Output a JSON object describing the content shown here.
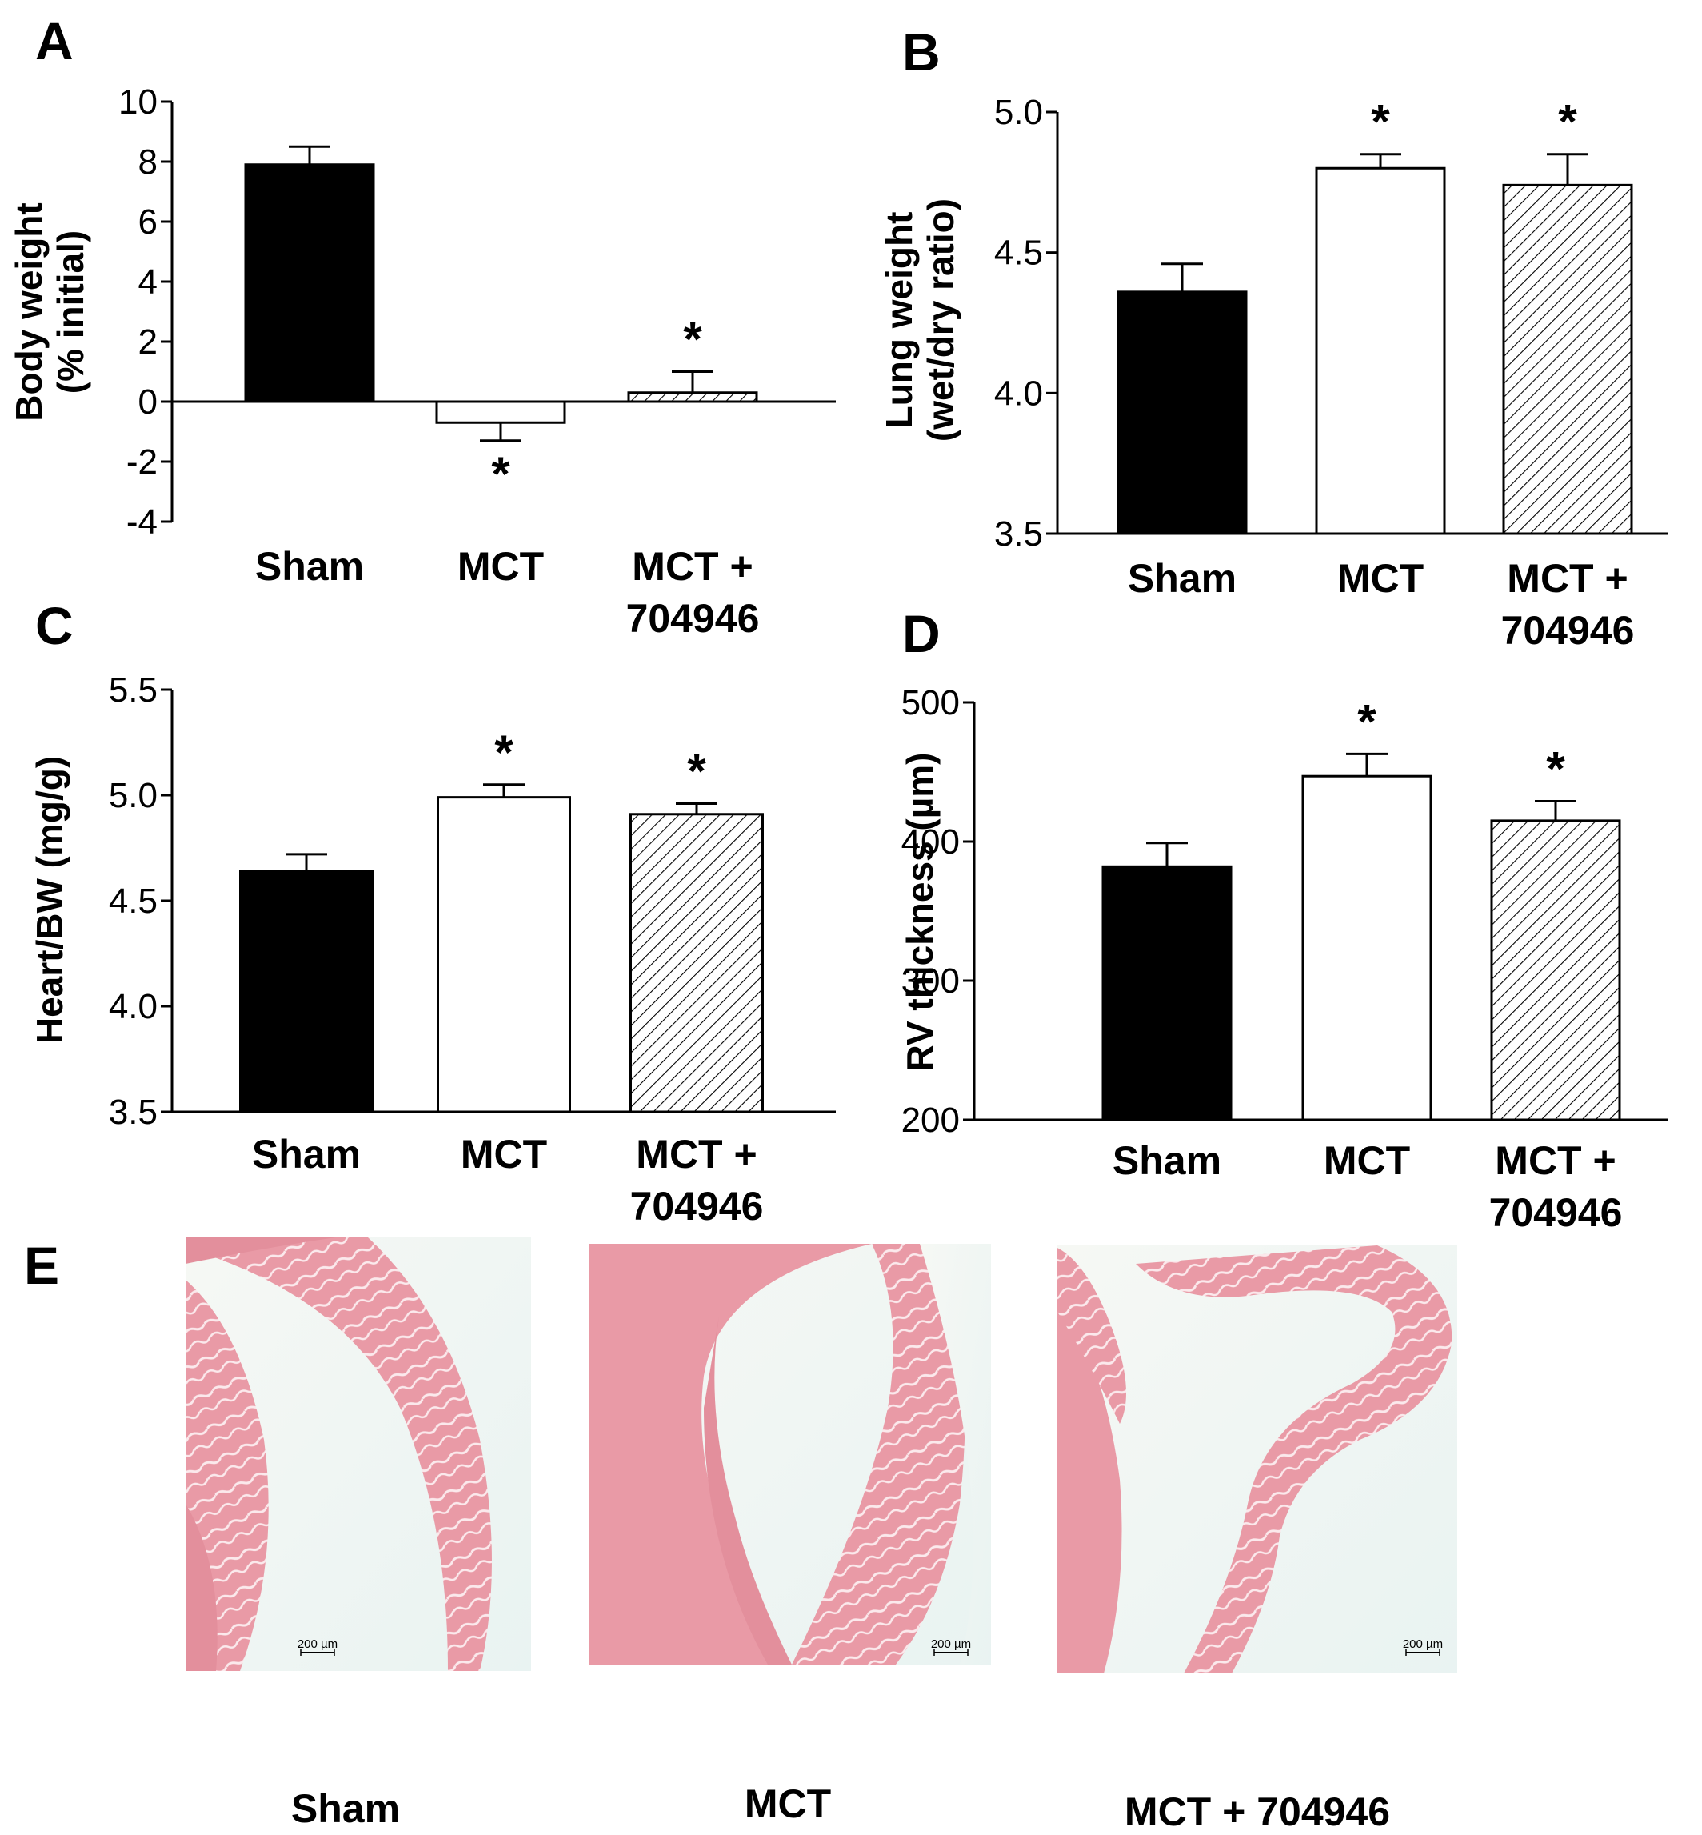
{
  "chart_data": [
    {
      "panel": "A",
      "type": "bar",
      "ylabel": [
        "Body weight",
        "(% initial)"
      ],
      "categories": [
        [
          "Sham"
        ],
        [
          "MCT"
        ],
        [
          "MCT +",
          "704946"
        ]
      ],
      "values": [
        7.9,
        -0.7,
        0.3
      ],
      "errors": [
        0.6,
        0.6,
        0.7
      ],
      "significant": [
        false,
        true,
        true
      ],
      "star_position": [
        "none",
        "below",
        "above"
      ],
      "ylim": [
        -4,
        10
      ],
      "yticks": [
        -4,
        -2,
        0,
        2,
        4,
        6,
        8,
        10
      ],
      "tick_labels": [
        "-4",
        "-2",
        "0",
        "2",
        "4",
        "6",
        "8",
        "10"
      ],
      "fills": [
        "black",
        "white",
        "hatch"
      ],
      "zero_line": true
    },
    {
      "panel": "B",
      "type": "bar",
      "ylabel": [
        "Lung weight",
        "(wet/dry ratio)"
      ],
      "categories": [
        [
          "Sham"
        ],
        [
          "MCT"
        ],
        [
          "MCT +",
          "704946"
        ]
      ],
      "values": [
        4.36,
        4.8,
        4.74
      ],
      "errors": [
        0.1,
        0.05,
        0.11
      ],
      "significant": [
        false,
        true,
        true
      ],
      "star_position": [
        "none",
        "above",
        "above"
      ],
      "ylim": [
        3.5,
        5.0
      ],
      "yticks": [
        3.5,
        4.0,
        4.5,
        5.0
      ],
      "tick_labels": [
        "3.5",
        "4.0",
        "4.5",
        "5.0"
      ],
      "fills": [
        "black",
        "white",
        "hatch"
      ],
      "zero_line": false
    },
    {
      "panel": "C",
      "type": "bar",
      "ylabel": [
        "Heart/BW (mg/g)"
      ],
      "categories": [
        [
          "Sham"
        ],
        [
          "MCT"
        ],
        [
          "MCT +",
          "704946"
        ]
      ],
      "values": [
        4.64,
        4.99,
        4.91
      ],
      "errors": [
        0.08,
        0.06,
        0.05
      ],
      "significant": [
        false,
        true,
        true
      ],
      "star_position": [
        "none",
        "above",
        "above"
      ],
      "ylim": [
        3.5,
        5.5
      ],
      "yticks": [
        3.5,
        4.0,
        4.5,
        5.0,
        5.5
      ],
      "tick_labels": [
        "3.5",
        "4.0",
        "4.5",
        "5.0",
        "5.5"
      ],
      "fills": [
        "black",
        "white",
        "hatch"
      ],
      "zero_line": false
    },
    {
      "panel": "D",
      "type": "bar",
      "ylabel": [
        "RV thickness (µm)"
      ],
      "categories": [
        [
          "Sham"
        ],
        [
          "MCT"
        ],
        [
          "MCT +",
          "704946"
        ]
      ],
      "values": [
        382,
        447,
        415
      ],
      "errors": [
        17,
        16,
        14
      ],
      "significant": [
        false,
        true,
        true
      ],
      "star_position": [
        "none",
        "above",
        "above"
      ],
      "ylim": [
        200,
        500
      ],
      "yticks": [
        200,
        300,
        400,
        500
      ],
      "tick_labels": [
        "200",
        "300",
        "400",
        "500"
      ],
      "fills": [
        "black",
        "white",
        "hatch"
      ],
      "zero_line": false
    }
  ],
  "panel_e": {
    "letter": "E",
    "images": [
      {
        "label": "Sham",
        "scale_bar": "200 µm"
      },
      {
        "label": "MCT",
        "scale_bar": "200 µm"
      },
      {
        "label": "MCT + 704946",
        "scale_bar": "200 µm"
      }
    ]
  },
  "colors": {
    "bar_dark": "#000000",
    "tissue": "#e89aa4",
    "tissue_dark": "#d97f8c",
    "background_slide": "#f3f8f6"
  }
}
